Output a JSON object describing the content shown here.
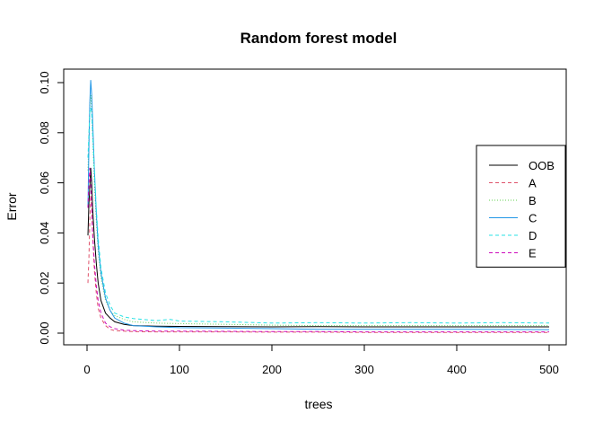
{
  "chart_data": {
    "type": "line",
    "title": "Random forest model",
    "xlabel": "trees",
    "ylabel": "Error",
    "xlim": [
      0,
      500
    ],
    "ylim": [
      0,
      0.1
    ],
    "x_ticks": [
      0,
      100,
      200,
      300,
      400,
      500
    ],
    "x_tick_labels": [
      "0",
      "100",
      "200",
      "300",
      "400",
      "500"
    ],
    "y_ticks": [
      0,
      0.02,
      0.04,
      0.06,
      0.08,
      0.1
    ],
    "y_tick_labels": [
      "0.00",
      "0.02",
      "0.04",
      "0.06",
      "0.08",
      "0.10"
    ],
    "grid": false,
    "legend_position": "right",
    "series": [
      {
        "name": "OOB",
        "color": "#000000",
        "dash": "solid",
        "x": [
          1,
          2,
          3,
          4,
          5,
          6,
          8,
          10,
          12,
          15,
          20,
          25,
          30,
          40,
          50,
          75,
          100,
          150,
          200,
          250,
          300,
          400,
          500
        ],
        "y": [
          0.039,
          0.052,
          0.058,
          0.066,
          0.06,
          0.05,
          0.038,
          0.028,
          0.02,
          0.013,
          0.008,
          0.006,
          0.0045,
          0.0035,
          0.003,
          0.0028,
          0.0027,
          0.0026,
          0.0025,
          0.0026,
          0.0025,
          0.0025,
          0.0025
        ]
      },
      {
        "name": "A",
        "color": "#DF536B",
        "dash": "dashed",
        "x": [
          1,
          2,
          3,
          4,
          5,
          6,
          8,
          10,
          12,
          15,
          20,
          25,
          30,
          40,
          50,
          75,
          100,
          150,
          200,
          250,
          300,
          400,
          500
        ],
        "y": [
          0.02,
          0.03,
          0.045,
          0.055,
          0.05,
          0.04,
          0.025,
          0.016,
          0.01,
          0.006,
          0.003,
          0.0015,
          0.001,
          0.0008,
          0.0006,
          0.0005,
          0.0005,
          0.0005,
          0.0004,
          0.0004,
          0.0003,
          0.0003,
          0.0003
        ]
      },
      {
        "name": "B",
        "color": "#61D04F",
        "dash": "dotted",
        "x": [
          1,
          2,
          3,
          4,
          5,
          6,
          8,
          10,
          12,
          15,
          20,
          25,
          30,
          40,
          50,
          75,
          100,
          150,
          200,
          250,
          300,
          400,
          500
        ],
        "y": [
          0.065,
          0.078,
          0.09,
          0.095,
          0.09,
          0.08,
          0.06,
          0.045,
          0.033,
          0.022,
          0.013,
          0.009,
          0.007,
          0.0055,
          0.0045,
          0.004,
          0.0038,
          0.0035,
          0.0032,
          0.003,
          0.003,
          0.003,
          0.003
        ]
      },
      {
        "name": "C",
        "color": "#2297E6",
        "dash": "solid",
        "x": [
          1,
          2,
          3,
          4,
          5,
          6,
          8,
          10,
          12,
          15,
          20,
          25,
          30,
          40,
          50,
          75,
          100,
          150,
          200,
          250,
          300,
          400,
          500
        ],
        "y": [
          0.05,
          0.075,
          0.092,
          0.101,
          0.095,
          0.085,
          0.065,
          0.048,
          0.035,
          0.024,
          0.014,
          0.009,
          0.006,
          0.004,
          0.003,
          0.0025,
          0.0022,
          0.002,
          0.0018,
          0.0015,
          0.0015,
          0.0015,
          0.0014
        ]
      },
      {
        "name": "D",
        "color": "#28E2E5",
        "dash": "dashed",
        "x": [
          1,
          2,
          3,
          4,
          5,
          6,
          8,
          10,
          12,
          15,
          20,
          25,
          30,
          40,
          50,
          60,
          75,
          90,
          100,
          150,
          200,
          250,
          300,
          350,
          400,
          450,
          500
        ],
        "y": [
          0.07,
          0.08,
          0.088,
          0.09,
          0.088,
          0.08,
          0.065,
          0.05,
          0.038,
          0.026,
          0.016,
          0.011,
          0.008,
          0.0065,
          0.0058,
          0.0055,
          0.005,
          0.0055,
          0.0048,
          0.0045,
          0.004,
          0.0042,
          0.004,
          0.0042,
          0.004,
          0.0042,
          0.004
        ]
      },
      {
        "name": "E",
        "color": "#CD0BBC",
        "dash": "dashed",
        "x": [
          1,
          2,
          3,
          4,
          5,
          6,
          8,
          10,
          12,
          15,
          20,
          25,
          30,
          40,
          50,
          75,
          100,
          150,
          200,
          250,
          300,
          400,
          500
        ],
        "y": [
          0.05,
          0.06,
          0.066,
          0.06,
          0.05,
          0.04,
          0.028,
          0.019,
          0.013,
          0.008,
          0.004,
          0.0025,
          0.0018,
          0.0012,
          0.001,
          0.0008,
          0.0008,
          0.0007,
          0.0006,
          0.0006,
          0.0005,
          0.0005,
          0.0005
        ]
      }
    ]
  }
}
